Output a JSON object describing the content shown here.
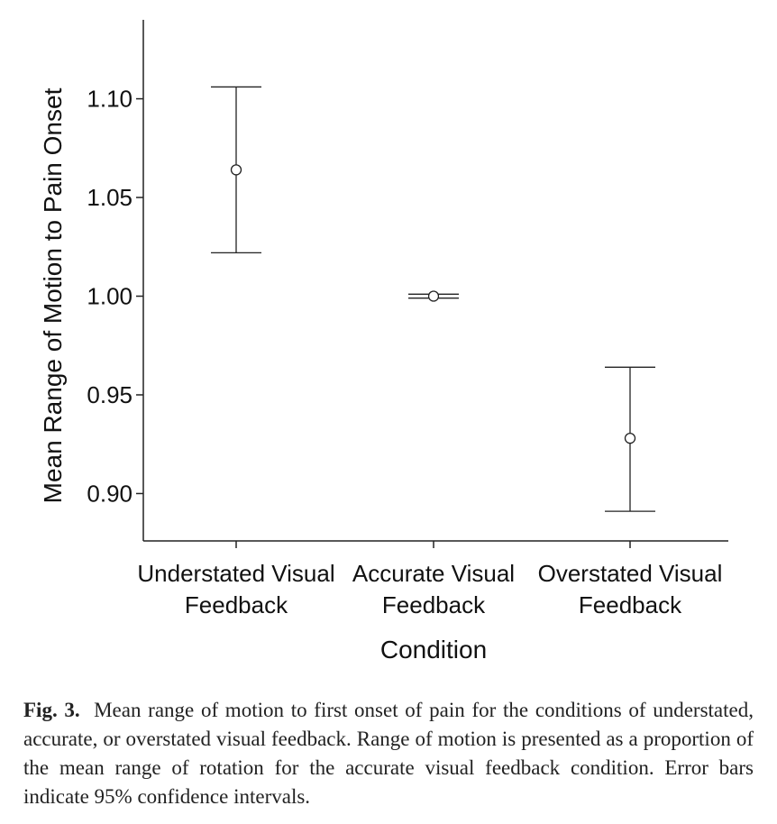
{
  "chart_data": {
    "type": "scatter",
    "subtype": "point-with-error-bars",
    "categories": [
      [
        "Understated Visual",
        "Feedback"
      ],
      [
        "Accurate Visual",
        "Feedback"
      ],
      [
        "Overstated Visual",
        "Feedback"
      ]
    ],
    "means": [
      1.064,
      1.0,
      0.928
    ],
    "ci_low": [
      1.022,
      0.999,
      0.891
    ],
    "ci_high": [
      1.106,
      1.001,
      0.964
    ],
    "yticks": [
      "0.90",
      "0.95",
      "1.00",
      "1.05",
      "1.10"
    ],
    "ylim": [
      0.876,
      1.14
    ],
    "xlabel": "Condition",
    "ylabel": "Mean Range of Motion to Pain Onset",
    "grid": false,
    "legend": "none"
  },
  "caption": {
    "label": "Fig. 3.",
    "text": "Mean range of motion to first onset of pain for the conditions of understated, accurate, or overstated visual feedback. Range of motion is presented as a proportion of the mean range of rotation for the accurate visual feedback condition. Error bars indicate 95% confidence intervals."
  }
}
